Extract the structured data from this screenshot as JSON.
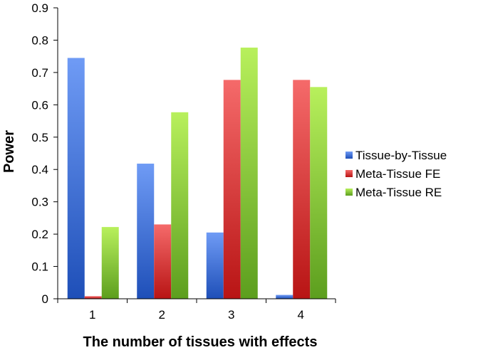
{
  "chart_data": {
    "type": "bar",
    "categories": [
      "1",
      "2",
      "3",
      "4"
    ],
    "series": [
      {
        "name": "Tissue-by-Tissue",
        "values": [
          0.745,
          0.418,
          0.205,
          0.012
        ],
        "color_top": "#6f9bf5",
        "color_bottom": "#1e4fb8"
      },
      {
        "name": "Meta-Tissue FE",
        "values": [
          0.008,
          0.23,
          0.677,
          0.677
        ],
        "color_top": "#f56a6a",
        "color_bottom": "#b81414"
      },
      {
        "name": "Meta-Tissue RE",
        "values": [
          0.222,
          0.577,
          0.777,
          0.655
        ],
        "color_top": "#b8f05c",
        "color_bottom": "#5c9e1e"
      }
    ],
    "xlabel": "The number of tissues with effects",
    "ylabel": "Power",
    "ylim": [
      0,
      0.9
    ],
    "yticks": [
      "0",
      "0.1",
      "0.2",
      "0.3",
      "0.4",
      "0.5",
      "0.6",
      "0.7",
      "0.8",
      "0.9"
    ],
    "grid": false,
    "legend_position": "right"
  }
}
